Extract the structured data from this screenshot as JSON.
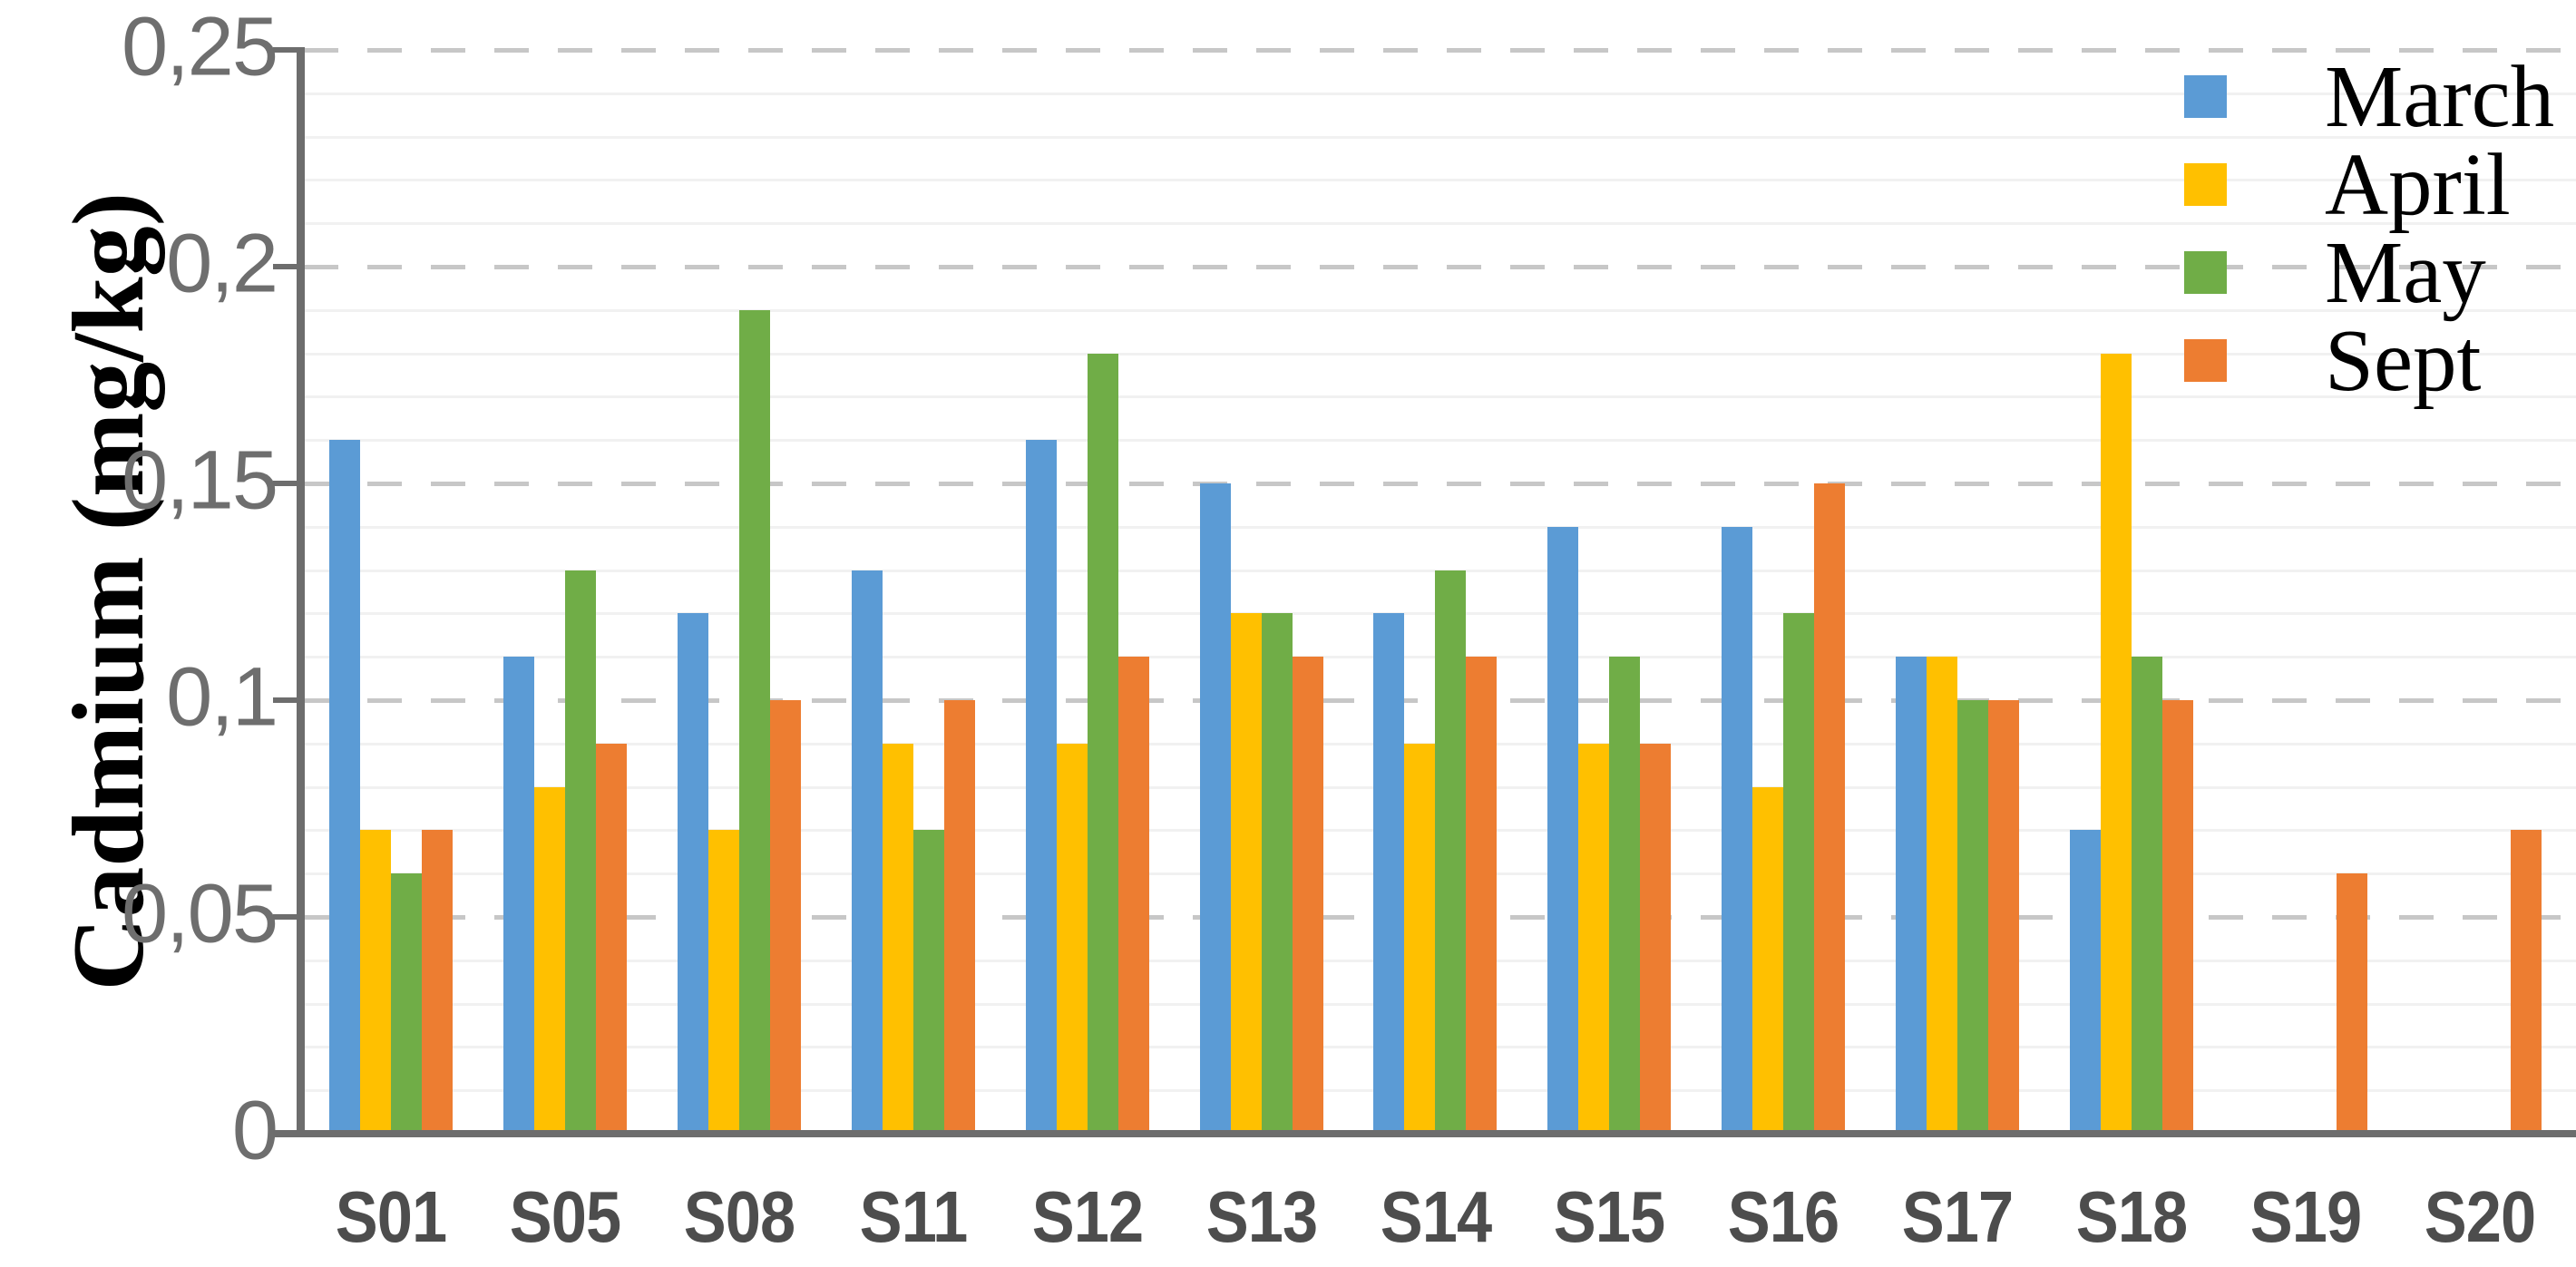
{
  "styles": {
    "background": "#ffffff",
    "axis_color": "#6d6d6d",
    "major_grid_color": "#c7c7c7",
    "minor_grid_color": "#f1f1f1",
    "y_tick_text_color": "#6e6e6e",
    "x_tick_text_color": "#4d4d4d",
    "legend_text_color": "#000000"
  },
  "chart_data": {
    "type": "bar",
    "title": "",
    "xlabel": "",
    "ylabel": "Cadmium (mg/kg)",
    "ylim": [
      0,
      0.25
    ],
    "y_major_step": 0.05,
    "y_minor_step": 0.01,
    "decimal_separator": ",",
    "grid": {
      "major": "dashed",
      "minor": "solid"
    },
    "legend_position": "top-right",
    "y_ticks": [
      {
        "value": 0,
        "label": "0"
      },
      {
        "value": 0.05,
        "label": "0,05"
      },
      {
        "value": 0.1,
        "label": "0,1"
      },
      {
        "value": 0.15,
        "label": "0,15"
      },
      {
        "value": 0.2,
        "label": "0,2"
      },
      {
        "value": 0.25,
        "label": "0,25"
      }
    ],
    "categories": [
      "S01",
      "S05",
      "S08",
      "S11",
      "S12",
      "S13",
      "S14",
      "S15",
      "S16",
      "S17",
      "S18",
      "S19",
      "S20"
    ],
    "series": [
      {
        "name": "March",
        "color": "#5B9BD5",
        "values": [
          0.16,
          0.11,
          0.12,
          0.13,
          0.16,
          0.15,
          0.12,
          0.14,
          0.14,
          0.11,
          0.07,
          0,
          0
        ]
      },
      {
        "name": "April",
        "color": "#FFC000",
        "values": [
          0.07,
          0.08,
          0.07,
          0.09,
          0.09,
          0.12,
          0.09,
          0.09,
          0.08,
          0.11,
          0.18,
          0,
          0
        ]
      },
      {
        "name": "May",
        "color": "#70AD47",
        "values": [
          0.06,
          0.13,
          0.19,
          0.07,
          0.18,
          0.12,
          0.13,
          0.11,
          0.12,
          0.1,
          0.11,
          0,
          0
        ]
      },
      {
        "name": "Sept",
        "color": "#ED7D31",
        "values": [
          0.07,
          0.09,
          0.1,
          0.1,
          0.11,
          0.11,
          0.11,
          0.09,
          0.15,
          0.1,
          0.1,
          0.06,
          0.07
        ]
      }
    ]
  }
}
